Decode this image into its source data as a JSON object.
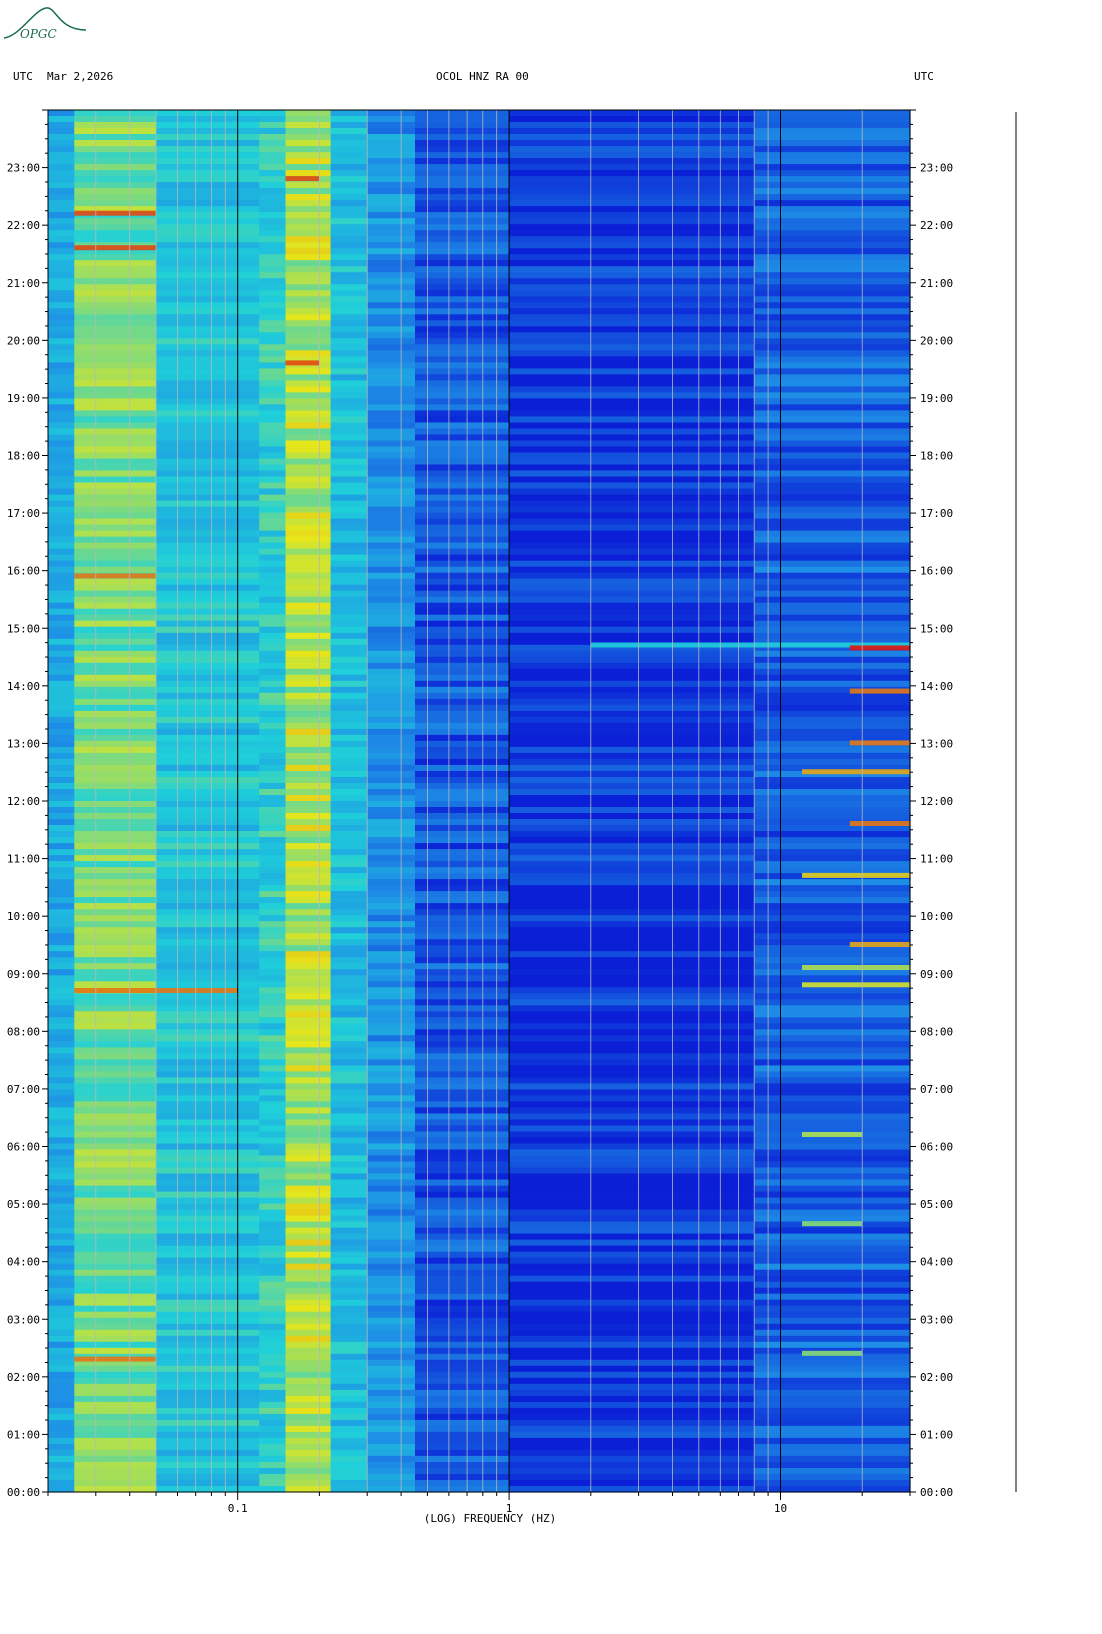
{
  "header": {
    "left_label": "UTC",
    "date": "Mar 2,2026",
    "station": "OCOL HNZ RA 00",
    "right_label": "UTC"
  },
  "logo": {
    "text": "OPGC"
  },
  "colors": {
    "background": "#ffffff",
    "low": "#0a1fd6",
    "mid_low": "#1e8fe6",
    "mid": "#1fd0d9",
    "mid_high": "#e6e61a",
    "high": "#e01a12",
    "gridline": "#b8b8b8"
  },
  "chart_data": {
    "type": "heatmap",
    "title": "OCOL HNZ RA 00",
    "xlabel": "(LOG) FREQUENCY (HZ)",
    "x_scale": "log",
    "xlim": [
      0.02,
      30
    ],
    "x_ticks": [
      {
        "value": 0.1,
        "label": "0.1"
      },
      {
        "value": 1,
        "label": "1"
      },
      {
        "value": 10,
        "label": "10"
      }
    ],
    "ylim": [
      0,
      24
    ],
    "y_unit": "hours UTC",
    "y_ticks_left": [
      "00:00",
      "01:00",
      "02:00",
      "03:00",
      "04:00",
      "05:00",
      "06:00",
      "07:00",
      "08:00",
      "09:00",
      "10:00",
      "11:00",
      "12:00",
      "13:00",
      "14:00",
      "15:00",
      "16:00",
      "17:00",
      "18:00",
      "19:00",
      "20:00",
      "21:00",
      "22:00",
      "23:00"
    ],
    "y_ticks_right": [
      "00:00",
      "01:00",
      "02:00",
      "03:00",
      "04:00",
      "05:00",
      "06:00",
      "07:00",
      "08:00",
      "09:00",
      "10:00",
      "11:00",
      "12:00",
      "13:00",
      "14:00",
      "15:00",
      "16:00",
      "17:00",
      "18:00",
      "19:00",
      "20:00",
      "21:00",
      "22:00",
      "23:00"
    ],
    "grid": "vertical lines at log frequency decades",
    "bands": [
      {
        "f_min": 0.02,
        "f_max": 0.025,
        "level": 0.35
      },
      {
        "f_min": 0.025,
        "f_max": 0.05,
        "level": 0.62
      },
      {
        "f_min": 0.05,
        "f_max": 0.12,
        "level": 0.45
      },
      {
        "f_min": 0.12,
        "f_max": 0.15,
        "level": 0.5
      },
      {
        "f_min": 0.15,
        "f_max": 0.22,
        "level": 0.7
      },
      {
        "f_min": 0.22,
        "f_max": 0.3,
        "level": 0.42
      },
      {
        "f_min": 0.3,
        "f_max": 0.45,
        "level": 0.28
      },
      {
        "f_min": 0.45,
        "f_max": 1,
        "level": 0.12
      },
      {
        "f_min": 1,
        "f_max": 8,
        "level": 0.05
      },
      {
        "f_min": 8,
        "f_max": 30,
        "level": 0.14
      }
    ],
    "events": [
      {
        "hour": 14.7,
        "f_min": 2,
        "f_max": 30,
        "level": 0.5
      },
      {
        "hour": 14.65,
        "f_min": 18,
        "f_max": 30,
        "level": 1.0
      },
      {
        "hour": 13.9,
        "f_min": 18,
        "f_max": 30,
        "level": 0.9
      },
      {
        "hour": 13.0,
        "f_min": 18,
        "f_max": 30,
        "level": 0.9
      },
      {
        "hour": 12.5,
        "f_min": 12,
        "f_max": 30,
        "level": 0.85
      },
      {
        "hour": 11.6,
        "f_min": 18,
        "f_max": 30,
        "level": 0.9
      },
      {
        "hour": 10.7,
        "f_min": 12,
        "f_max": 30,
        "level": 0.8
      },
      {
        "hour": 9.5,
        "f_min": 18,
        "f_max": 30,
        "level": 0.85
      },
      {
        "hour": 9.1,
        "f_min": 12,
        "f_max": 30,
        "level": 0.7
      },
      {
        "hour": 8.8,
        "f_min": 12,
        "f_max": 30,
        "level": 0.75
      },
      {
        "hour": 6.2,
        "f_min": 12,
        "f_max": 20,
        "level": 0.7
      },
      {
        "hour": 4.65,
        "f_min": 12,
        "f_max": 20,
        "level": 0.65
      },
      {
        "hour": 2.4,
        "f_min": 12,
        "f_max": 20,
        "level": 0.65
      },
      {
        "hour": 22.2,
        "f_min": 0.025,
        "f_max": 0.05,
        "level": 0.95
      },
      {
        "hour": 21.6,
        "f_min": 0.025,
        "f_max": 0.05,
        "level": 0.95
      },
      {
        "hour": 15.9,
        "f_min": 0.025,
        "f_max": 0.05,
        "level": 0.9
      },
      {
        "hour": 8.7,
        "f_min": 0.025,
        "f_max": 0.1,
        "level": 0.9
      },
      {
        "hour": 2.3,
        "f_min": 0.025,
        "f_max": 0.05,
        "level": 0.9
      },
      {
        "hour": 22.8,
        "f_min": 0.15,
        "f_max": 0.2,
        "level": 0.95
      },
      {
        "hour": 19.6,
        "f_min": 0.15,
        "f_max": 0.2,
        "level": 0.95
      }
    ]
  }
}
